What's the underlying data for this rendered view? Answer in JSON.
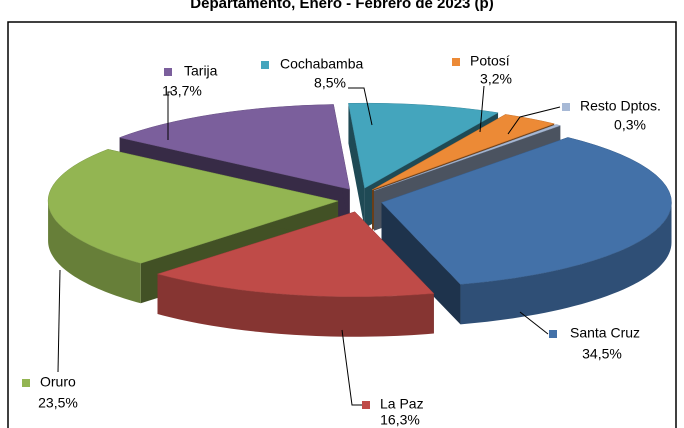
{
  "chart_data": {
    "type": "pie3d",
    "title": "Departamento, Enero - Febrero de 2023 (p)",
    "categories": [
      "Santa Cruz",
      "La Paz",
      "Oruro",
      "Tarija",
      "Cochabamba",
      "Potosí",
      "Resto Dptos."
    ],
    "values": [
      34.5,
      16.3,
      23.5,
      13.7,
      8.5,
      3.2,
      0.3
    ],
    "value_labels": [
      "34,5%",
      "16,3%",
      "23,5%",
      "13,7%",
      "8,5%",
      "3,2%",
      "0,3%"
    ],
    "colors": [
      "#4371a8",
      "#bf4b48",
      "#93b552",
      "#7b5f9c",
      "#44a5bd",
      "#ec8a36",
      "#a7b9d6"
    ]
  }
}
